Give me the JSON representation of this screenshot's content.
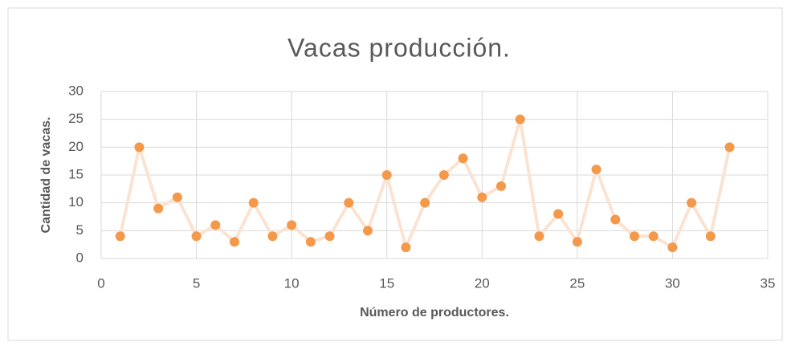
{
  "chart_data": {
    "type": "scatter",
    "title": "Vacas producción.",
    "x_label": "Número de productores.",
    "y_label": "Cantidad de vacas.",
    "x": [
      1,
      2,
      3,
      4,
      5,
      6,
      7,
      8,
      9,
      10,
      11,
      12,
      13,
      14,
      15,
      16,
      17,
      18,
      19,
      20,
      21,
      22,
      23,
      24,
      25,
      26,
      27,
      28,
      29,
      30,
      31,
      32,
      33
    ],
    "values": [
      4,
      20,
      9,
      11,
      4,
      6,
      3,
      10,
      4,
      6,
      3,
      4,
      10,
      5,
      15,
      2,
      10,
      15,
      18,
      11,
      13,
      25,
      4,
      8,
      3,
      16,
      7,
      4,
      4,
      2,
      10,
      4,
      20
    ],
    "color": "#f4984a",
    "line_color": "#fbe3d2",
    "lines": true,
    "xlim": [
      0,
      35
    ],
    "xticks": [
      0,
      5,
      10,
      15,
      20,
      25,
      30,
      35
    ],
    "ylim": [
      0,
      30
    ],
    "yticks": [
      0,
      5,
      10,
      15,
      20,
      25,
      30
    ],
    "grid": true
  }
}
